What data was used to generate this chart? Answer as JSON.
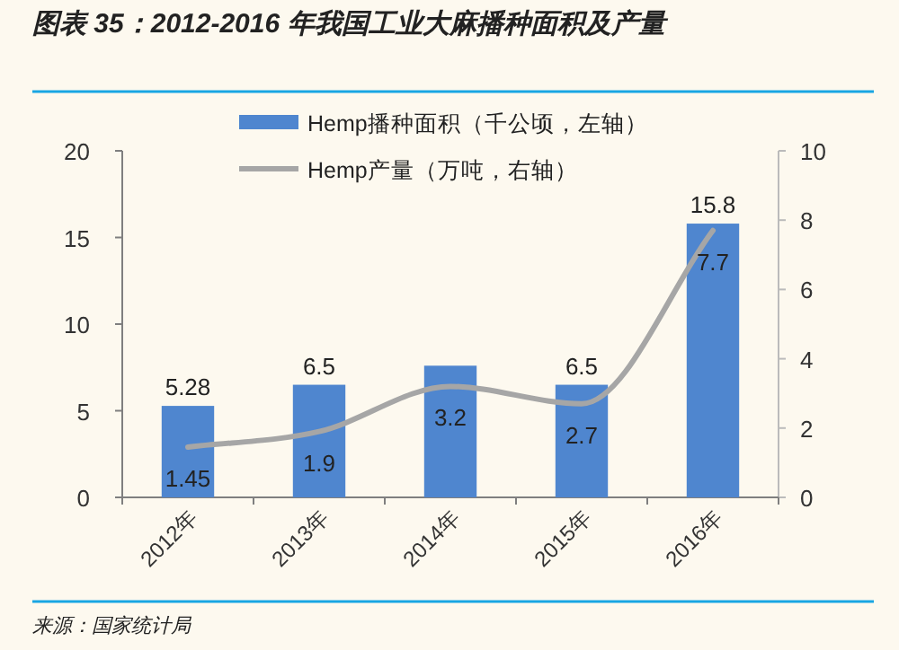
{
  "chart_data": {
    "type": "bar",
    "title": "图表 35：2012-2016 年我国工业大麻播种面积及产量",
    "categories": [
      "2012年",
      "2013年",
      "2014年",
      "2015年",
      "2016年"
    ],
    "series": [
      {
        "name": "Hemp播种面积（千公顷，左轴）",
        "color": "#4f86cf",
        "values": [
          5.28,
          6.5,
          7.6,
          6.5,
          15.8
        ],
        "value_labels": [
          "5.28",
          "6.5",
          null,
          "6.5",
          "15.8"
        ]
      },
      {
        "name": "Hemp产量（万吨，右轴）",
        "type": "line",
        "axis": "y2",
        "color": "#a6a6a6",
        "values": [
          1.45,
          1.9,
          3.2,
          2.7,
          7.7
        ],
        "value_labels": [
          "1.45",
          "1.9",
          "3.2",
          "2.7",
          "7.7"
        ]
      }
    ],
    "ylim": [
      0,
      20
    ],
    "yticks": [
      0,
      5,
      10,
      15,
      20
    ],
    "y2lim": [
      0,
      10
    ],
    "y2ticks": [
      0,
      2,
      4,
      6,
      8,
      10
    ],
    "legend": "top",
    "marker": "none",
    "grid": false,
    "annotations": [
      "来源：国家统计局"
    ]
  }
}
